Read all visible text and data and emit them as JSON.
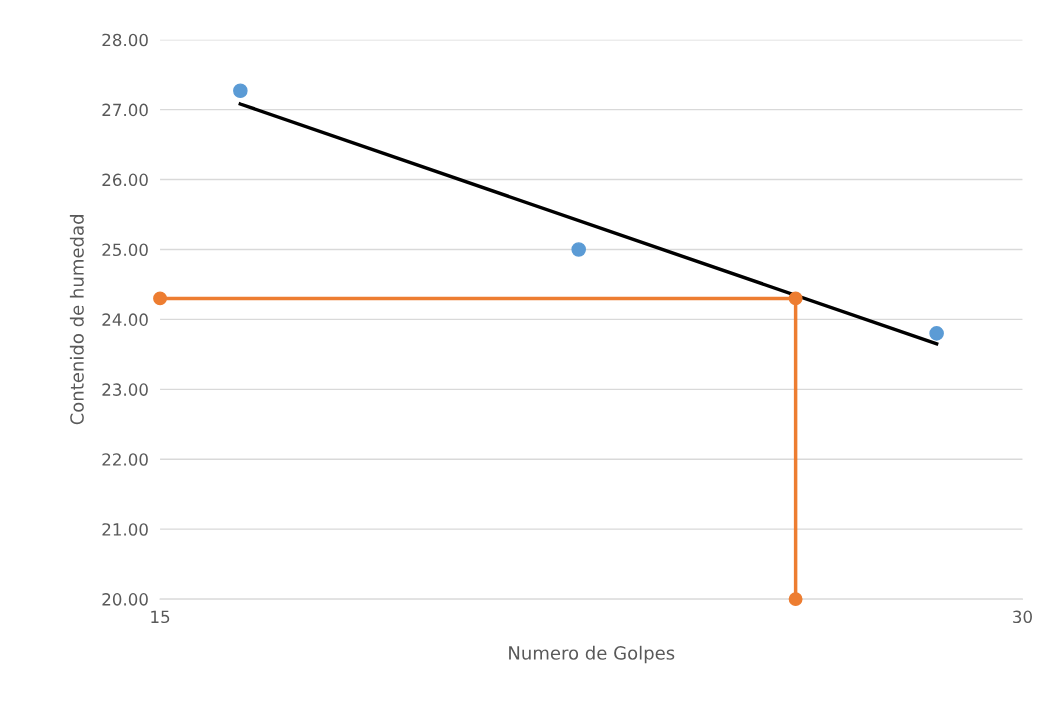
{
  "chart_data": {
    "type": "scatter",
    "xlabel": "Numero de Golpes",
    "ylabel": "Contenido de humedad",
    "log": "x",
    "xlim": [
      15,
      30
    ],
    "xticks": [
      15,
      30
    ],
    "ylim": [
      20,
      28
    ],
    "yticks": [
      {
        "value": 20,
        "label": "20.00"
      },
      {
        "value": 21,
        "label": "21.00"
      },
      {
        "value": 22,
        "label": "22.00"
      },
      {
        "value": 23,
        "label": "23.00"
      },
      {
        "value": 24,
        "label": "24.00"
      },
      {
        "value": 25,
        "label": "25.00"
      },
      {
        "value": 26,
        "label": "26.00"
      },
      {
        "value": 27,
        "label": "27.00"
      },
      {
        "value": 28,
        "label": "28.00"
      }
    ],
    "grid": "y",
    "series": [
      {
        "type": "line",
        "color": "#000000",
        "x": [
          16,
          28
        ],
        "values": [
          27.08,
          23.65
        ],
        "marker": "none"
      },
      {
        "type": "line",
        "color": "#ed7d31",
        "x": [
          15,
          25,
          25
        ],
        "values": [
          24.3,
          24.3,
          20
        ],
        "marker": "circle"
      },
      {
        "color": "#5b9bd5",
        "x": [
          16,
          21,
          28
        ],
        "values": [
          27.27,
          25.0,
          23.8
        ],
        "marker": "circle"
      }
    ]
  }
}
